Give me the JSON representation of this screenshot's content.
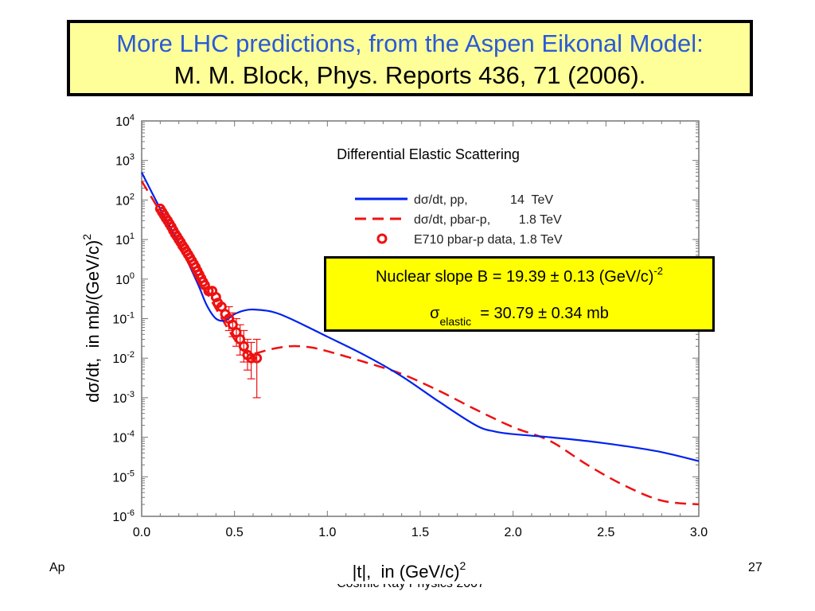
{
  "title": {
    "line1": "More LHC predictions, from the Aspen Eikonal Model:",
    "line2": "M. M. Block, Phys. Reports 436, 71 (2006)."
  },
  "info_box": {
    "slope_text": "Nuclear slope B = 19.39 ± 0.13 (GeV/c)",
    "slope_exp": "-2",
    "sigma_symbol": "σ",
    "sigma_sub": "elastic",
    "sigma_value": "= 30.79 ± 0.34 mb"
  },
  "footer": {
    "left": "Ap",
    "page_number": "27",
    "center": "Cosmic Ray Physics 2007"
  },
  "colors": {
    "pp": "#0022ee",
    "pbarp": "#ee1111",
    "data": "#ee1111",
    "title_blue": "#2a5bd7"
  },
  "chart_data": {
    "type": "line",
    "title": "Differential Elastic Scattering",
    "xlabel": "|t|,  in (GeV/c)",
    "xlabel_exp": "2",
    "ylabel": "dσ/dt,  in mb/(GeV/c)",
    "ylabel_exp": "2",
    "yscale": "log",
    "xlim": [
      0.0,
      3.0
    ],
    "ylim": [
      1e-06,
      10000.0
    ],
    "x_ticks": [
      "0.0",
      "0.5",
      "1.0",
      "1.5",
      "2.0",
      "2.5",
      "3.0"
    ],
    "y_ticks": [
      {
        "base": "10",
        "exp": "4"
      },
      {
        "base": "10",
        "exp": "3"
      },
      {
        "base": "10",
        "exp": "2"
      },
      {
        "base": "10",
        "exp": "1"
      },
      {
        "base": "10",
        "exp": "0"
      },
      {
        "base": "10",
        "exp": "-1"
      },
      {
        "base": "10",
        "exp": "-2"
      },
      {
        "base": "10",
        "exp": "-3"
      },
      {
        "base": "10",
        "exp": "-4"
      },
      {
        "base": "10",
        "exp": "-5"
      },
      {
        "base": "10",
        "exp": "-6"
      }
    ],
    "legend_position": "top-right",
    "series": [
      {
        "name": "dσ/dt, pp,            14  TeV",
        "style": "solid",
        "x": [
          0.0,
          0.1,
          0.2,
          0.3,
          0.35,
          0.4,
          0.45,
          0.5,
          0.55,
          0.6,
          0.7,
          0.8,
          1.0,
          1.2,
          1.4,
          1.6,
          1.8,
          1.9,
          2.0,
          2.2,
          2.4,
          2.6,
          2.8,
          3.0
        ],
        "y": [
          500,
          60,
          8,
          0.8,
          0.22,
          0.1,
          0.09,
          0.13,
          0.16,
          0.17,
          0.15,
          0.1,
          0.035,
          0.012,
          0.0035,
          0.0008,
          0.0002,
          0.00014,
          0.00012,
          0.0001,
          8e-05,
          6e-05,
          4.2e-05,
          2.5e-05
        ]
      },
      {
        "name": "dσ/dt, pbar-p,        1.8 TeV",
        "style": "dashed",
        "x": [
          0.0,
          0.1,
          0.2,
          0.3,
          0.4,
          0.5,
          0.55,
          0.6,
          0.7,
          0.8,
          0.9,
          1.0,
          1.2,
          1.4,
          1.6,
          1.8,
          2.0,
          2.2,
          2.4,
          2.6,
          2.8,
          3.0
        ],
        "y": [
          300,
          50,
          8,
          1.2,
          0.18,
          0.03,
          0.015,
          0.013,
          0.017,
          0.02,
          0.019,
          0.015,
          0.008,
          0.004,
          0.0015,
          0.0005,
          0.00018,
          8e-05,
          2e-05,
          6e-06,
          2.5e-06,
          2e-06
        ]
      },
      {
        "name": "E710 pbar-p data, 1.8 TeV",
        "style": "markers",
        "x": [
          0.1,
          0.11,
          0.12,
          0.13,
          0.14,
          0.15,
          0.16,
          0.17,
          0.18,
          0.19,
          0.2,
          0.21,
          0.22,
          0.23,
          0.24,
          0.25,
          0.26,
          0.27,
          0.28,
          0.29,
          0.3,
          0.31,
          0.32,
          0.33,
          0.34,
          0.36,
          0.38,
          0.4,
          0.41,
          0.43,
          0.45,
          0.47,
          0.49,
          0.51,
          0.53,
          0.55,
          0.57,
          0.59,
          0.62
        ],
        "y": [
          60,
          50,
          42,
          35,
          30,
          25,
          21,
          17,
          14,
          12,
          10,
          8.5,
          7,
          6,
          5,
          4.2,
          3.5,
          2.9,
          2.4,
          2.0,
          1.6,
          1.3,
          1.05,
          0.85,
          0.7,
          0.5,
          0.5,
          0.35,
          0.25,
          0.2,
          0.13,
          0.1,
          0.07,
          0.045,
          0.03,
          0.02,
          0.012,
          0.01,
          0.01
        ],
        "err_lo": [
          null,
          null,
          null,
          null,
          null,
          null,
          null,
          null,
          null,
          null,
          null,
          null,
          null,
          null,
          null,
          null,
          null,
          null,
          null,
          null,
          null,
          null,
          null,
          null,
          null,
          null,
          null,
          null,
          null,
          null,
          null,
          0.05,
          0.035,
          0.02,
          0.012,
          0.008,
          0.005,
          0.003,
          0.001
        ],
        "err_hi": [
          null,
          null,
          null,
          null,
          null,
          null,
          null,
          null,
          null,
          null,
          null,
          null,
          null,
          null,
          null,
          null,
          null,
          null,
          null,
          null,
          null,
          null,
          null,
          null,
          null,
          null,
          null,
          null,
          null,
          null,
          null,
          0.2,
          0.14,
          0.1,
          0.07,
          0.05,
          0.03,
          0.025,
          0.03
        ]
      }
    ]
  }
}
